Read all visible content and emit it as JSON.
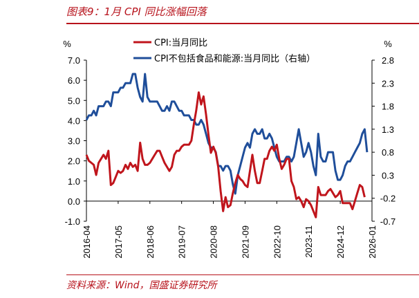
{
  "figure": {
    "title": "图表9：1月 CPI 同比涨幅回落",
    "source": "资料来源：Wind，国盛证券研究所"
  },
  "colors": {
    "cpi": "#c0151c",
    "core": "#1f4e9a",
    "accent": "#b7121b"
  },
  "chart_data": {
    "type": "line",
    "title": "图表9：1月 CPI 同比涨幅回落",
    "legend_position": "top-center",
    "grid": false,
    "left_axis": {
      "unit": "%",
      "min": -1.0,
      "max": 7.0,
      "ticks": [
        "7.0",
        "6.0",
        "5.0",
        "4.0",
        "3.0",
        "2.0",
        "1.0",
        "0.0",
        "-1.0"
      ]
    },
    "right_axis": {
      "unit": "%",
      "min": -0.7,
      "max": 2.8,
      "ticks": [
        "2.8",
        "2.3",
        "1.8",
        "1.3",
        "0.8",
        "0.3",
        "-0.2",
        "-0.7"
      ]
    },
    "x_tick_labels": [
      "2016-04",
      "2017-05",
      "2018-06",
      "2019-07",
      "2020-08",
      "2021-09",
      "2022-10",
      "2023-11",
      "2024-12",
      "2026-01"
    ],
    "x_start": "2016-04",
    "series": [
      {
        "name": "CPI:当月同比",
        "axis": "left",
        "values": [
          2.3,
          2.0,
          1.9,
          1.8,
          1.3,
          1.9,
          2.1,
          2.3,
          2.1,
          2.5,
          0.8,
          0.9,
          1.2,
          1.5,
          1.4,
          1.5,
          1.8,
          1.6,
          1.9,
          1.7,
          1.8,
          1.5,
          2.9,
          2.1,
          1.8,
          1.8,
          1.9,
          2.1,
          2.3,
          2.5,
          2.5,
          2.2,
          1.9,
          1.7,
          1.5,
          1.7,
          2.3,
          2.5,
          2.5,
          2.7,
          2.8,
          2.8,
          2.8,
          3.0,
          3.8,
          4.5,
          5.4,
          4.8,
          5.2,
          4.3,
          3.3,
          2.4,
          2.7,
          2.4,
          1.7,
          0.5,
          -0.5,
          0.2,
          -0.3,
          -0.2,
          0.4,
          0.9,
          1.3,
          1.1,
          1.0,
          0.8,
          0.7,
          1.5,
          2.3,
          1.5,
          0.9,
          0.9,
          1.5,
          2.1,
          2.1,
          2.5,
          2.7,
          2.5,
          2.8,
          2.1,
          1.6,
          1.8,
          2.1,
          2.1,
          1.0,
          0.7,
          0.1,
          0.2,
          0.0,
          -0.3,
          0.1,
          0.0,
          -0.2,
          -0.5,
          -0.8,
          0.7,
          0.3,
          0.3,
          0.3,
          0.5,
          0.6,
          0.4,
          0.2,
          0.3,
          0.5,
          -0.1,
          -0.1,
          -0.1,
          -0.1,
          -0.4,
          0.0,
          0.4,
          0.8,
          0.7,
          0.2
        ]
      },
      {
        "name": "CPI不包括食品和能源:当月同比（右轴）",
        "axis": "right",
        "values": [
          1.5,
          1.6,
          1.6,
          1.7,
          1.6,
          1.8,
          1.8,
          1.8,
          1.9,
          1.9,
          1.8,
          2.1,
          2.1,
          2.1,
          2.2,
          2.2,
          2.3,
          2.3,
          2.3,
          2.5,
          2.5,
          2.2,
          2.0,
          1.9,
          2.5,
          2.0,
          1.9,
          1.9,
          1.9,
          1.9,
          1.8,
          1.7,
          1.7,
          1.8,
          1.7,
          1.9,
          1.9,
          1.8,
          1.7,
          1.7,
          1.6,
          1.6,
          1.6,
          1.5,
          1.5,
          1.4,
          1.4,
          1.5,
          1.4,
          1.2,
          1.0,
          0.9,
          0.9,
          0.8,
          0.5,
          0.5,
          0.4,
          0.5,
          0.5,
          0.4,
          0.1,
          -0.1,
          0.3,
          0.5,
          0.7,
          0.9,
          1.0,
          0.9,
          1.2,
          1.3,
          1.2,
          1.2,
          1.3,
          1.1,
          1.1,
          1.2,
          1.1,
          0.9,
          0.7,
          0.6,
          0.6,
          0.6,
          0.7,
          0.7,
          0.6,
          0.7,
          1.0,
          1.3,
          1.0,
          0.7,
          0.8,
          1.0,
          0.8,
          0.5,
          0.3,
          1.2,
          0.7,
          0.6,
          0.6,
          0.8,
          0.8,
          0.8,
          0.4,
          0.2,
          0.2,
          0.3,
          0.5,
          0.6,
          0.6,
          0.7,
          0.8,
          0.9,
          1.0,
          1.2,
          1.3,
          0.8
        ]
      }
    ]
  }
}
